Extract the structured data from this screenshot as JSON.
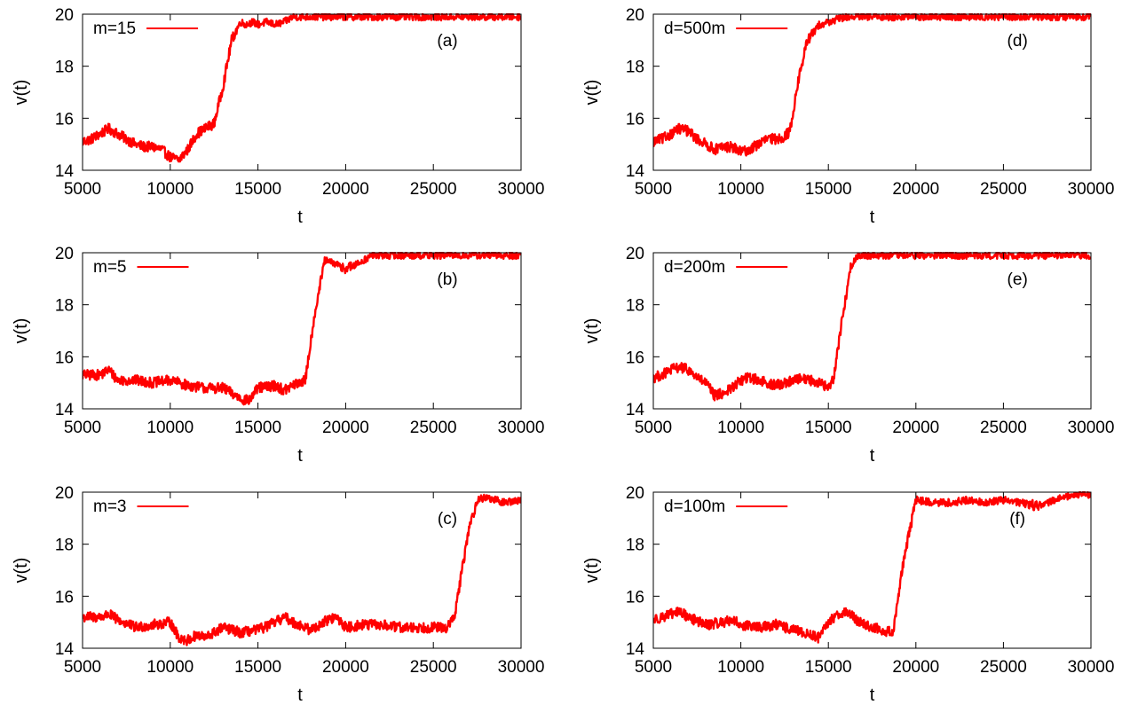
{
  "chart_data": [
    {
      "type": "line",
      "panel_label": "(a)",
      "legend": "m=15",
      "xlabel": "t",
      "ylabel": "v(t)",
      "xlim": [
        5000,
        30000
      ],
      "ylim": [
        14,
        20
      ],
      "xticks": [
        "5000",
        "10000",
        "15000",
        "20000",
        "25000",
        "30000"
      ],
      "yticks": [
        "14",
        "16",
        "18",
        "20"
      ],
      "series": [
        {
          "name": "m=15",
          "x": [
            5000,
            5500,
            6000,
            6500,
            7000,
            7500,
            8000,
            8500,
            9000,
            9500,
            10000,
            10500,
            11000,
            11500,
            12000,
            12500,
            13000,
            13500,
            14000,
            14300,
            14700,
            15000,
            15500,
            16000,
            16500,
            17000,
            17500,
            18000,
            20000,
            25000,
            30000
          ],
          "y": [
            15.1,
            15.2,
            15.4,
            15.6,
            15.4,
            15.2,
            15.0,
            14.9,
            14.9,
            14.8,
            14.5,
            14.4,
            14.8,
            15.4,
            15.6,
            15.8,
            17.2,
            19.0,
            19.7,
            19.6,
            19.7,
            19.6,
            19.7,
            19.6,
            19.7,
            19.9,
            19.9,
            19.9,
            19.9,
            19.9,
            19.9
          ]
        }
      ],
      "color": "#ff0000"
    },
    {
      "type": "line",
      "panel_label": "(b)",
      "legend": "m=5",
      "xlabel": "t",
      "ylabel": "v(t)",
      "xlim": [
        5000,
        30000
      ],
      "ylim": [
        14,
        20
      ],
      "xticks": [
        "5000",
        "10000",
        "15000",
        "20000",
        "25000",
        "30000"
      ],
      "yticks": [
        "14",
        "16",
        "18",
        "20"
      ],
      "series": [
        {
          "name": "m=5",
          "x": [
            5000,
            6000,
            6500,
            7000,
            8000,
            9000,
            10000,
            11000,
            12000,
            13000,
            14000,
            14500,
            15000,
            16000,
            16500,
            17000,
            17700,
            18200,
            18800,
            19300,
            20000,
            20500,
            21000,
            21500,
            22000,
            25000,
            30000
          ],
          "y": [
            15.3,
            15.3,
            15.5,
            15.1,
            15.1,
            15.0,
            15.1,
            14.9,
            14.8,
            14.8,
            14.4,
            14.3,
            14.8,
            14.9,
            14.7,
            14.9,
            15.1,
            17.5,
            19.7,
            19.6,
            19.4,
            19.5,
            19.7,
            19.9,
            19.9,
            19.9,
            19.9
          ]
        }
      ],
      "color": "#ff0000"
    },
    {
      "type": "line",
      "panel_label": "(c)",
      "legend": "m=3",
      "xlabel": "t",
      "ylabel": "v(t)",
      "xlim": [
        5000,
        30000
      ],
      "ylim": [
        14,
        20
      ],
      "xticks": [
        "5000",
        "10000",
        "15000",
        "20000",
        "25000",
        "30000"
      ],
      "yticks": [
        "14",
        "16",
        "18",
        "20"
      ],
      "series": [
        {
          "name": "m=3",
          "x": [
            5000,
            6000,
            6500,
            7000,
            8000,
            9000,
            10000,
            10500,
            11000,
            11500,
            12000,
            13000,
            14000,
            15000,
            16000,
            16500,
            17000,
            18000,
            19000,
            19500,
            20000,
            21000,
            22000,
            23000,
            24000,
            25000,
            25800,
            26200,
            27000,
            27500,
            28000,
            28500,
            29000,
            30000
          ],
          "y": [
            15.2,
            15.2,
            15.3,
            15.1,
            14.8,
            14.9,
            15.0,
            14.4,
            14.3,
            14.5,
            14.4,
            14.8,
            14.6,
            14.7,
            15.0,
            15.2,
            15.0,
            14.7,
            15.1,
            15.2,
            14.8,
            14.9,
            14.9,
            14.8,
            14.8,
            14.8,
            14.8,
            15.2,
            18.5,
            19.7,
            19.8,
            19.7,
            19.6,
            19.7
          ]
        }
      ],
      "color": "#ff0000"
    },
    {
      "type": "line",
      "panel_label": "(d)",
      "legend": "d=500m",
      "xlabel": "t",
      "ylabel": "v(t)",
      "xlim": [
        5000,
        30000
      ],
      "ylim": [
        14,
        20
      ],
      "xticks": [
        "5000",
        "10000",
        "15000",
        "20000",
        "25000",
        "30000"
      ],
      "yticks": [
        "14",
        "16",
        "18",
        "20"
      ],
      "series": [
        {
          "name": "d=500m",
          "x": [
            5000,
            5500,
            6000,
            6500,
            7000,
            7500,
            8000,
            8500,
            9000,
            9500,
            10000,
            10500,
            11000,
            11500,
            12000,
            12500,
            12800,
            13300,
            13800,
            14500,
            15000,
            15500,
            16000,
            17000,
            20000,
            25000,
            30000
          ],
          "y": [
            15.1,
            15.2,
            15.4,
            15.6,
            15.5,
            15.2,
            15.0,
            14.8,
            14.9,
            14.9,
            14.7,
            14.8,
            15.0,
            15.2,
            15.2,
            15.3,
            15.5,
            17.5,
            19.0,
            19.6,
            19.7,
            19.8,
            19.9,
            19.9,
            19.9,
            19.9,
            19.9
          ]
        }
      ],
      "color": "#ff0000"
    },
    {
      "type": "line",
      "panel_label": "(e)",
      "legend": "d=200m",
      "xlabel": "t",
      "ylabel": "v(t)",
      "xlim": [
        5000,
        30000
      ],
      "ylim": [
        14,
        20
      ],
      "xticks": [
        "5000",
        "10000",
        "15000",
        "20000",
        "25000",
        "30000"
      ],
      "yticks": [
        "14",
        "16",
        "18",
        "20"
      ],
      "series": [
        {
          "name": "d=200m",
          "x": [
            5000,
            5500,
            6000,
            6500,
            7000,
            7500,
            8000,
            8500,
            9000,
            9500,
            10000,
            10500,
            11000,
            11500,
            12000,
            12500,
            13000,
            13500,
            14000,
            14500,
            15000,
            15300,
            15800,
            16300,
            16700,
            17000,
            20000,
            25000,
            30000
          ],
          "y": [
            15.2,
            15.3,
            15.5,
            15.6,
            15.5,
            15.2,
            15.0,
            14.5,
            14.6,
            14.8,
            15.1,
            15.2,
            15.1,
            15.0,
            14.9,
            15.0,
            15.1,
            15.2,
            15.1,
            15.0,
            14.8,
            15.2,
            17.5,
            19.5,
            19.9,
            19.9,
            19.9,
            19.9,
            19.9
          ]
        }
      ],
      "color": "#ff0000"
    },
    {
      "type": "line",
      "panel_label": "(f)",
      "legend": "d=100m",
      "xlabel": "t",
      "ylabel": "v(t)",
      "xlim": [
        5000,
        30000
      ],
      "ylim": [
        14,
        20
      ],
      "xticks": [
        "5000",
        "10000",
        "15000",
        "20000",
        "25000",
        "30000"
      ],
      "yticks": [
        "14",
        "16",
        "18",
        "20"
      ],
      "series": [
        {
          "name": "d=100m",
          "x": [
            5000,
            6000,
            6500,
            7000,
            8000,
            9000,
            9500,
            10000,
            11000,
            12000,
            13000,
            14000,
            14500,
            15000,
            15500,
            16000,
            17000,
            18000,
            18700,
            19200,
            20000,
            21000,
            22000,
            23000,
            24000,
            25000,
            26000,
            26500,
            27000,
            28000,
            29000,
            30000
          ],
          "y": [
            15.1,
            15.3,
            15.4,
            15.2,
            14.9,
            15.0,
            15.1,
            14.9,
            14.8,
            14.9,
            14.7,
            14.5,
            14.4,
            15.0,
            15.3,
            15.4,
            14.9,
            14.7,
            14.6,
            17.0,
            19.7,
            19.6,
            19.6,
            19.7,
            19.6,
            19.7,
            19.6,
            19.5,
            19.5,
            19.7,
            19.9,
            19.9
          ]
        }
      ],
      "color": "#ff0000"
    }
  ]
}
